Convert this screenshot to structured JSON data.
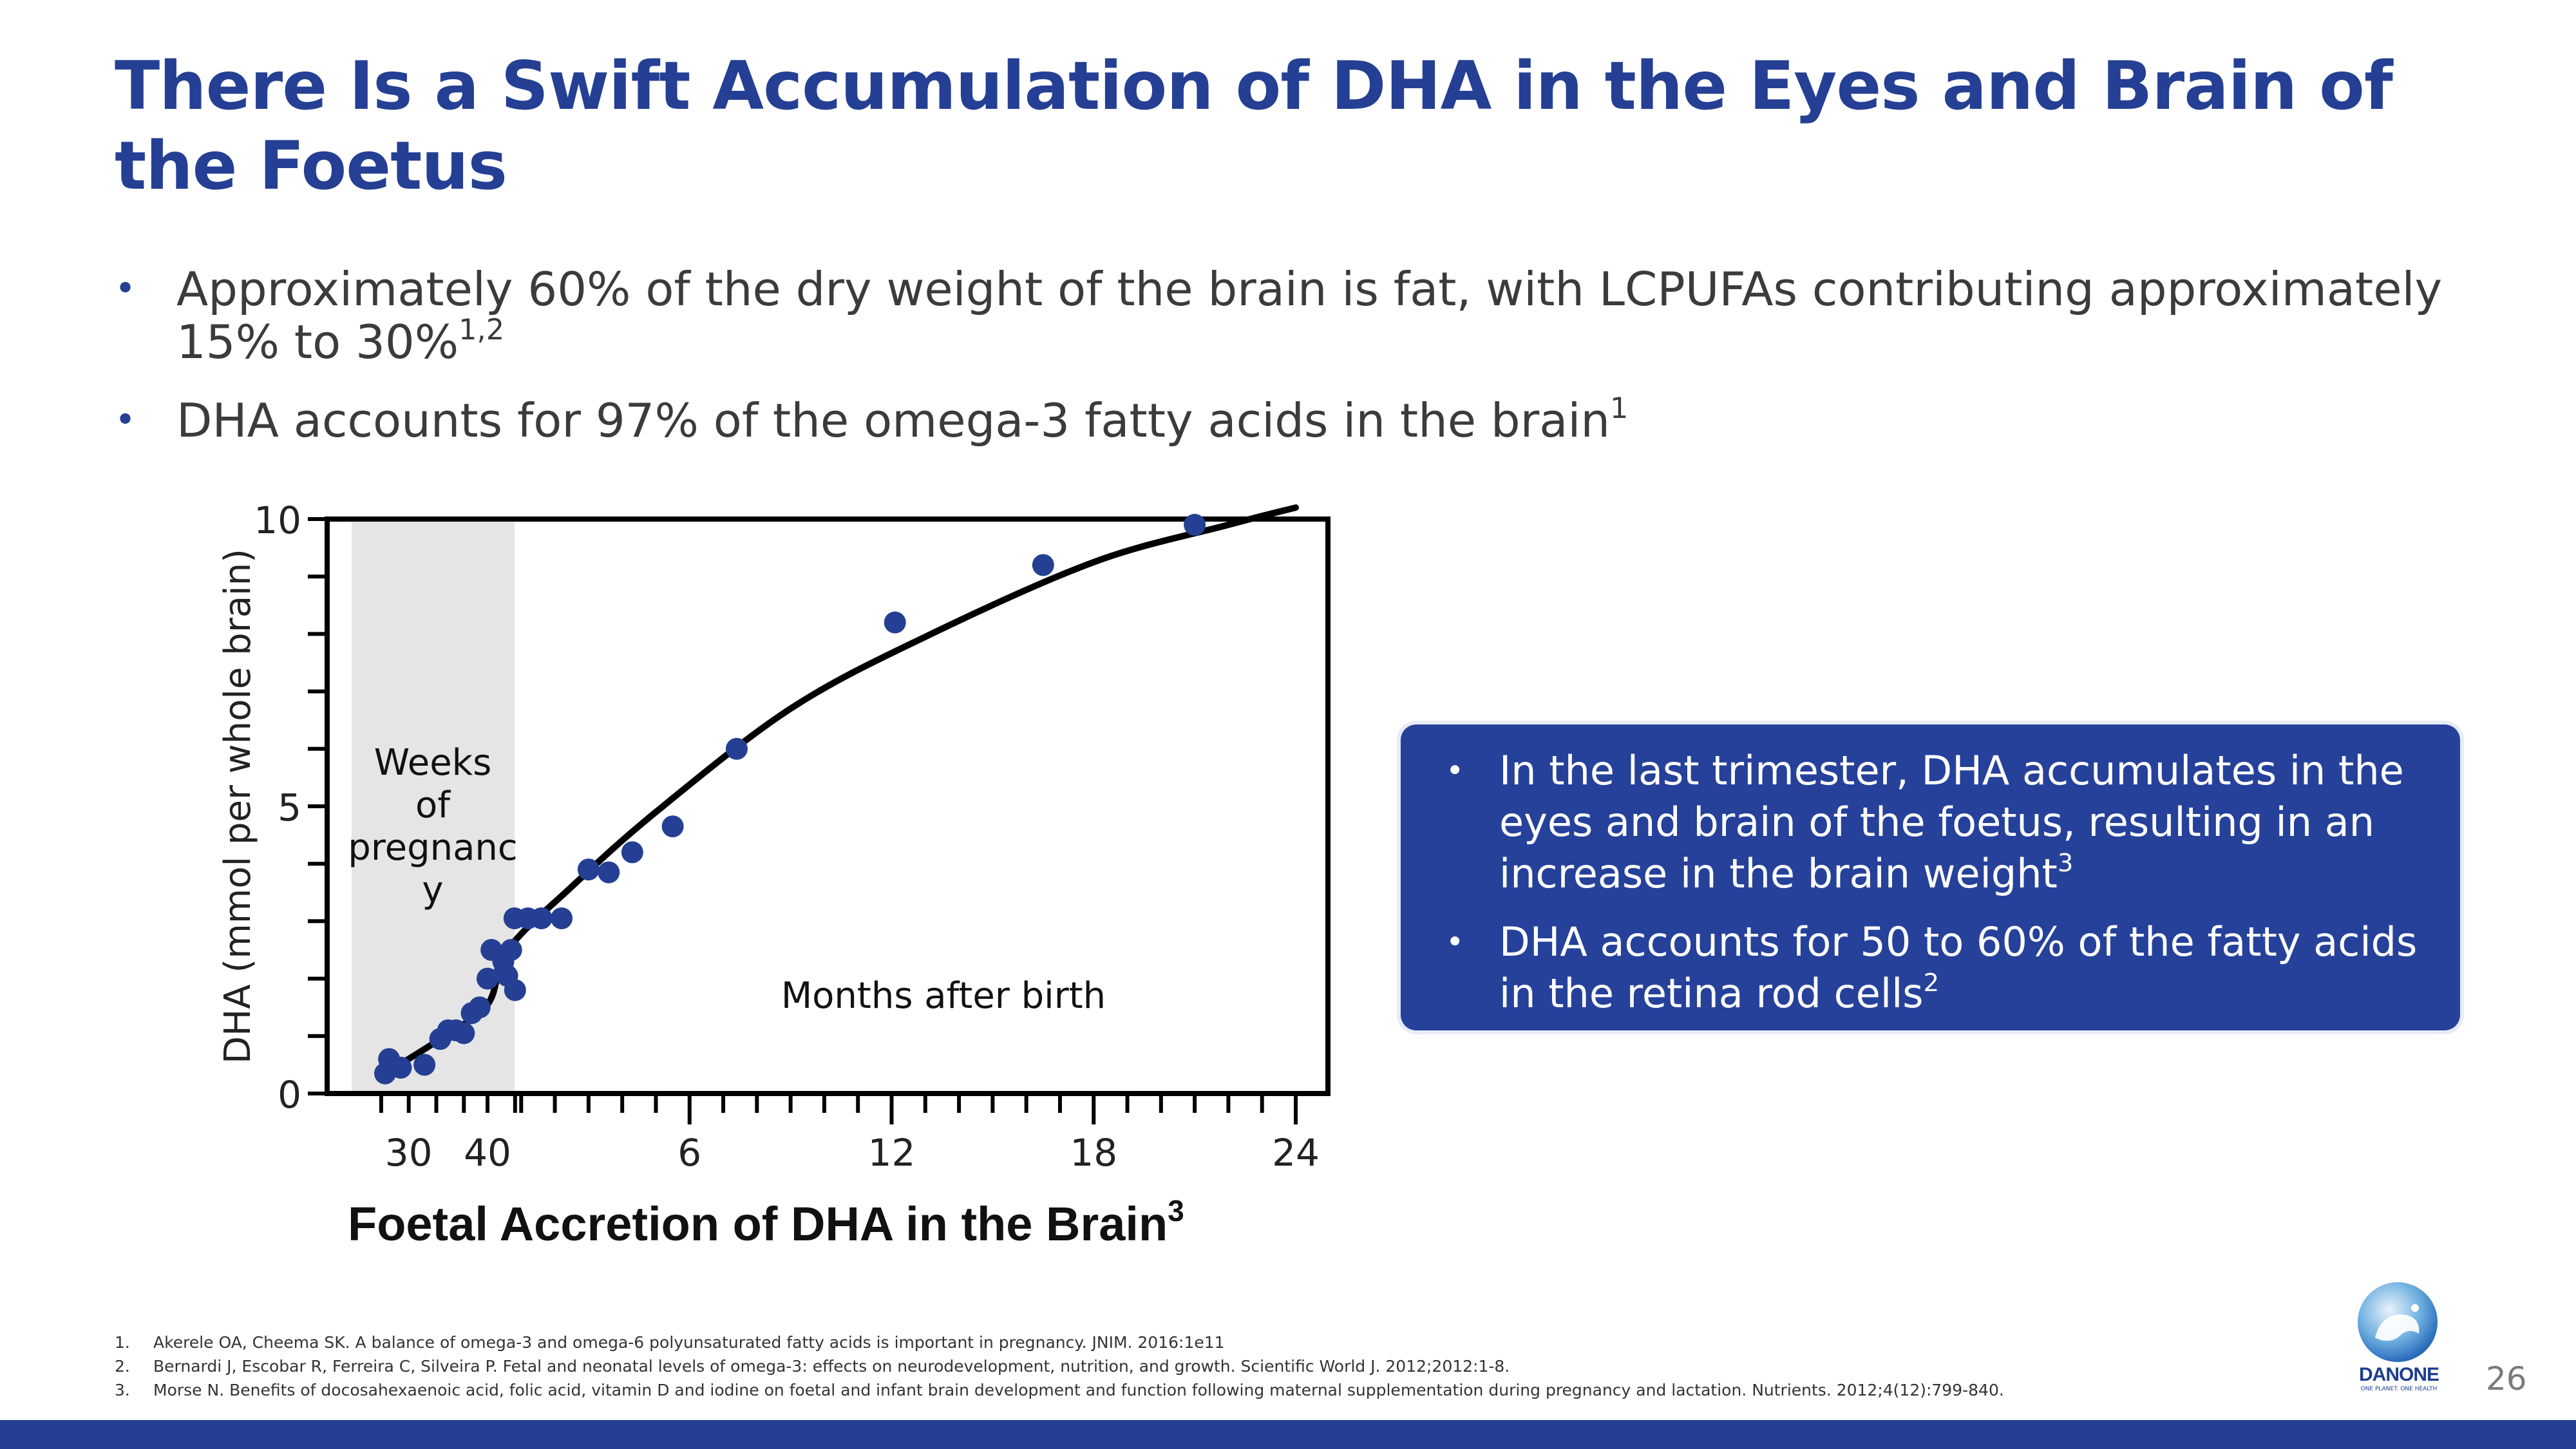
{
  "slide": {
    "title": "There Is a Swift Accumulation of DHA in the Eyes and Brain of the Foetus",
    "page_number": "26"
  },
  "bullets": [
    {
      "text": "Approximately 60% of the dry weight of the brain is fat, with LCPUFAs contributing approximately 15% to 30%",
      "sup": "1,2"
    },
    {
      "text": "DHA accounts for 97% of the omega-3 fatty acids in the brain",
      "sup": "1"
    }
  ],
  "callout": {
    "items": [
      {
        "text": "In the last trimester, DHA accumulates in the eyes and brain of the foetus, resulting in an increase in the brain weight",
        "sup": "3"
      },
      {
        "text": "DHA accounts for 50 to 60% of the fatty acids in the retina rod cells",
        "sup": "2"
      }
    ]
  },
  "chart_data": {
    "type": "scatter",
    "title": "Foetal Accretion of DHA in the Brain",
    "title_sup": "3",
    "ylabel": "DHA (mmol per whole brain)",
    "xlabel": "",
    "ylim": [
      0,
      10
    ],
    "yticks": [
      "0",
      "5",
      "10"
    ],
    "xticks": [
      "30",
      "40",
      "6",
      "12",
      "18",
      "24"
    ],
    "shaded_region_label": "Weeks of pregnanc y",
    "region_label": "Months after birth",
    "colors": {
      "points": "#243f93",
      "curve": "#000000",
      "shade": "#e5e5e5"
    },
    "series": [
      {
        "name": "Weeks of pregnancy",
        "x_unit": "weeks",
        "points": [
          [
            27,
            0.35
          ],
          [
            27.5,
            0.6
          ],
          [
            29,
            0.45
          ],
          [
            32,
            0.5
          ],
          [
            34,
            0.95
          ],
          [
            35,
            1.1
          ],
          [
            36,
            1.1
          ],
          [
            37,
            1.05
          ],
          [
            38,
            1.4
          ],
          [
            39,
            1.5
          ],
          [
            40,
            2.0
          ],
          [
            40.5,
            2.5
          ],
          [
            42,
            2.3
          ],
          [
            42.5,
            2.05
          ],
          [
            43,
            2.5
          ],
          [
            43.5,
            1.8
          ]
        ]
      },
      {
        "name": "Months after birth",
        "x_unit": "months",
        "points": [
          [
            0.5,
            2.1
          ],
          [
            0.8,
            3.05
          ],
          [
            1.2,
            3.05
          ],
          [
            1.6,
            3.05
          ],
          [
            2.2,
            3.05
          ],
          [
            3.0,
            3.9
          ],
          [
            3.6,
            3.85
          ],
          [
            4.3,
            4.2
          ],
          [
            5.5,
            4.65
          ],
          [
            7.4,
            6.0
          ],
          [
            12.1,
            8.2
          ],
          [
            16.5,
            9.2
          ],
          [
            21,
            9.9
          ]
        ]
      }
    ],
    "trend_curve": "fitted"
  },
  "references": [
    {
      "num": "1.",
      "text": "Akerele OA, Cheema SK. A balance of omega-3 and omega-6 polyunsaturated fatty acids is important in pregnancy. JNIM. 2016:1e11"
    },
    {
      "num": "2.",
      "text": "Bernardi J, Escobar R, Ferreira C, Silveira P. Fetal and neonatal levels of omega-3: effects on neurodevelopment, nutrition, and growth. Scientific World J. 2012;2012:1-8."
    },
    {
      "num": "3.",
      "text": "Morse N. Benefits of docosahexaenoic acid, folic acid, vitamin D and iodine on foetal and infant brain development and function following maternal supplementation during pregnancy and lactation. Nutrients. 2012;4(12):799-840."
    }
  ],
  "logo": {
    "word": "DANONE",
    "tagline": "ONE PLANET. ONE HEALTH"
  }
}
